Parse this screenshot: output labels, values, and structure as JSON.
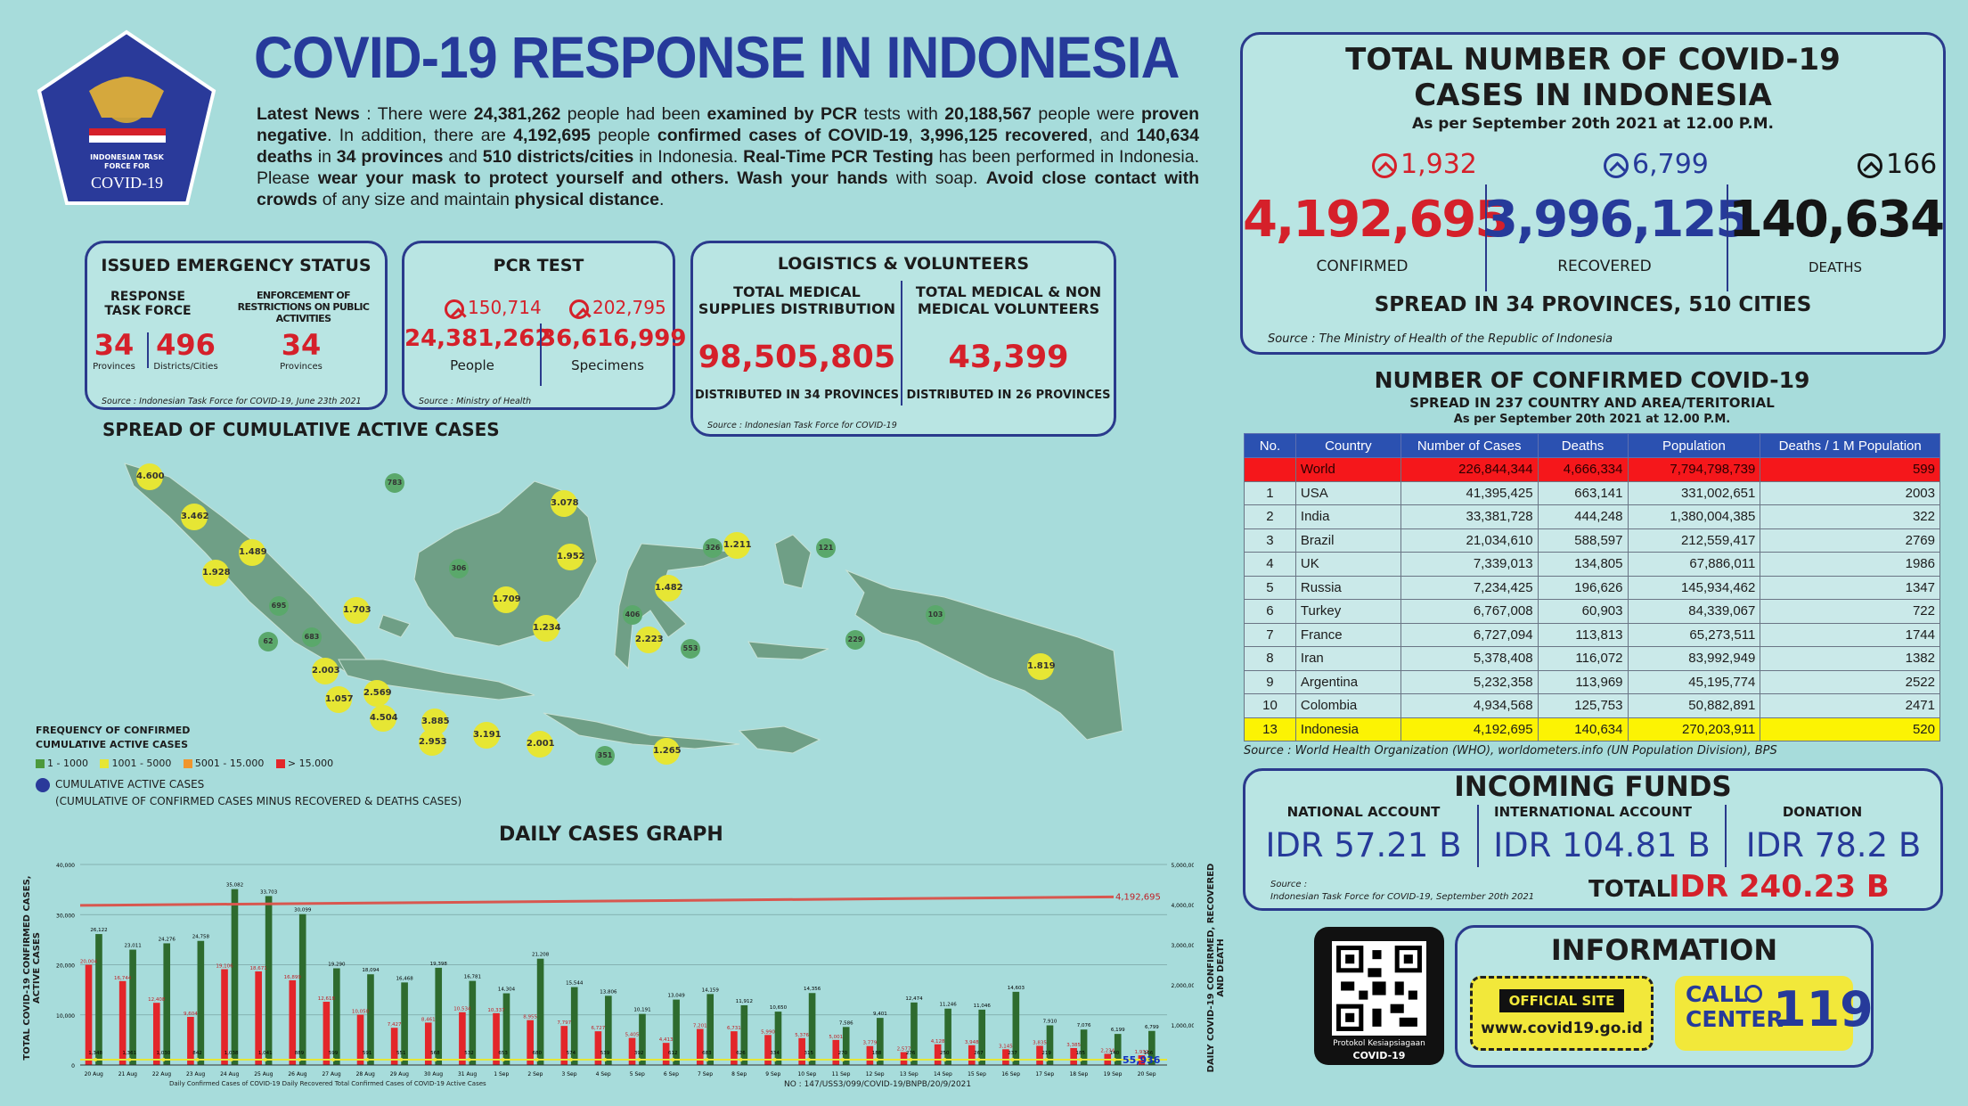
{
  "title": "COVID-19 RESPONSE IN INDONESIA",
  "logo": {
    "line1": "INDONESIAN TASK",
    "line2": "FORCE FOR",
    "line3": "COVID-19"
  },
  "news": {
    "lead": "Latest News",
    "pre": " : There were ",
    "tests": "24,381,262",
    "t1": " people had been ",
    "examined": "examined by PCR",
    "t2": " tests with ",
    "neg": "20,188,567",
    "t3": " people were ",
    "proven": "proven negative",
    "t4": ". In addition, there are ",
    "conf": "4,192,695",
    "t5": " people ",
    "confirmed": "confirmed cases of COVID-19",
    "t6": ", ",
    "rec": "3,996,125 recovered",
    "t7": ", and ",
    "deaths": "140,634 deaths",
    "t8": " in ",
    "prov": "34 provinces",
    "t9": " and ",
    "dist": "510 districts/cities",
    "t10": " in Indonesia. ",
    "rt": "Real-Time PCR Testing",
    "t11": " has been performed in Indonesia. Please ",
    "mask": "wear your mask to protect yourself and others. Wash your hands",
    "t12": " with soap. ",
    "avoid": "Avoid close contact with crowds",
    "t13": " of any size and maintain ",
    "dist2": "physical distance",
    "t14": "."
  },
  "emergency": {
    "title": "ISSUED EMERGENCY STATUS",
    "col1": "RESPONSE TASK FORCE",
    "col2": "ENFORCEMENT OF RESTRICTIONS ON PUBLIC ACTIVITIES",
    "v1": "34",
    "l1": "Provinces",
    "v2": "496",
    "l2": "Districts/Cities",
    "v3": "34",
    "l3": "Provinces",
    "source": "Source : Indonesian Task Force for COVID-19, June 23th 2021"
  },
  "pcr": {
    "title": "PCR TEST",
    "inc1": "150,714",
    "inc2": "202,795",
    "v1": "24,381,262",
    "l1": "People",
    "v2": "36,616,999",
    "l2": "Specimens",
    "source": "Source : Ministry of Health"
  },
  "logistics": {
    "title": "LOGISTICS & VOLUNTEERS",
    "c1": "TOTAL MEDICAL SUPPLIES DISTRIBUTION",
    "v1": "98,505,805",
    "d1": "DISTRIBUTED IN 34 PROVINCES",
    "c2": "TOTAL MEDICAL & NON MEDICAL VOLUNTEERS",
    "v2": "43,399",
    "d2": "DISTRIBUTED IN 26 PROVINCES",
    "source": "Source : Indonesian Task Force for COVID-19"
  },
  "total": {
    "title1": "TOTAL NUMBER OF COVID-19",
    "title2": "CASES IN INDONESIA",
    "asof": "As per September 20th 2021 at 12.00 P.M.",
    "inc_conf": "1,932",
    "inc_rec": "6,799",
    "inc_death": "166",
    "conf": "4,192,695",
    "rec": "3,996,125",
    "death": "140,634",
    "l_conf": "CONFIRMED",
    "l_rec": "RECOVERED",
    "l_death": "DEATHS",
    "spread": "SPREAD IN 34 PROVINCES, 510 CITIES",
    "source": "Source : The Ministry of Health of the Republic of Indonesia"
  },
  "world": {
    "title": "NUMBER OF CONFIRMED COVID-19",
    "sub": "SPREAD IN 237 COUNTRY AND AREA/TERITORIAL",
    "asof": "As per September 20th 2021 at 12.00 P.M.",
    "headers": [
      "No.",
      "Country",
      "Number of Cases",
      "Deaths",
      "Population",
      "Deaths / 1 M Population"
    ],
    "rows": [
      [
        "",
        "World",
        "226,844,344",
        "4,666,334",
        "7,794,798,739",
        "599"
      ],
      [
        "1",
        "USA",
        "41,395,425",
        "663,141",
        "331,002,651",
        "2003"
      ],
      [
        "2",
        "India",
        "33,381,728",
        "444,248",
        "1,380,004,385",
        "322"
      ],
      [
        "3",
        "Brazil",
        "21,034,610",
        "588,597",
        "212,559,417",
        "2769"
      ],
      [
        "4",
        "UK",
        "7,339,013",
        "134,805",
        "67,886,011",
        "1986"
      ],
      [
        "5",
        "Russia",
        "7,234,425",
        "196,626",
        "145,934,462",
        "1347"
      ],
      [
        "6",
        "Turkey",
        "6,767,008",
        "60,903",
        "84,339,067",
        "722"
      ],
      [
        "7",
        "France",
        "6,727,094",
        "113,813",
        "65,273,511",
        "1744"
      ],
      [
        "8",
        "Iran",
        "5,378,408",
        "116,072",
        "83,992,949",
        "1382"
      ],
      [
        "9",
        "Argentina",
        "5,232,358",
        "113,969",
        "45,195,774",
        "2522"
      ],
      [
        "10",
        "Colombia",
        "4,934,568",
        "125,753",
        "50,882,891",
        "2471"
      ],
      [
        "13",
        "Indonesia",
        "4,192,695",
        "140,634",
        "270,203,911",
        "520"
      ]
    ],
    "source": "Source : World Health Organization (WHO), worldometers.info (UN Population Division), BPS"
  },
  "funds": {
    "title": "INCOMING FUNDS",
    "l1": "NATIONAL ACCOUNT",
    "v1": "IDR 57.21 B",
    "l2": "INTERNATIONAL ACCOUNT",
    "v2": "IDR 104.81 B",
    "l3": "DONATION",
    "v3": "IDR 78.2 B",
    "total_l": "TOTAL",
    "total_v": "IDR 240.23 B",
    "source1": "Source :",
    "source2": "Indonesian Task Force for COVID-19, September 20th 2021"
  },
  "info": {
    "title": "INFORMATION",
    "site_label": "OFFICIAL SITE",
    "site": "www.covid19.go.id",
    "call1": "CALL",
    "call2": "CENTER",
    "call_num": "119",
    "qr_caption1": "Protokol Kesiapsiagaan",
    "qr_caption2": "COVID-19"
  },
  "map": {
    "title": "SPREAD OF CUMULATIVE ACTIVE CASES",
    "legend_title1": "FREQUENCY OF CONFIRMED",
    "legend_title2": "CUMULATIVE ACTIVE CASES",
    "legend": [
      "1 - 1000",
      "1001 - 5000",
      "5001 - 15.000",
      "> 15.000"
    ],
    "legend_colors": [
      "#4c9a3c",
      "#e6e634",
      "#f0962d",
      "#e3262a"
    ],
    "cum_title": "CUMULATIVE ACTIVE CASES",
    "cum_sub": "(CUMULATIVE OF CONFIRMED CASES MINUS RECOVERED & DEATHS CASES)",
    "points": [
      [
        "4.600",
        "y"
      ],
      [
        "783",
        "g"
      ],
      [
        "3.462",
        "y"
      ],
      [
        "3.078",
        "y"
      ],
      [
        "1.489",
        "y"
      ],
      [
        "1.928",
        "y"
      ],
      [
        "306",
        "g"
      ],
      [
        "1.952",
        "y"
      ],
      [
        "326",
        "g"
      ],
      [
        "1.211",
        "y"
      ],
      [
        "121",
        "g"
      ],
      [
        "695",
        "g"
      ],
      [
        "1.709",
        "y"
      ],
      [
        "1.482",
        "y"
      ],
      [
        "1.703",
        "y"
      ],
      [
        "62",
        "g"
      ],
      [
        "683",
        "g"
      ],
      [
        "406",
        "g"
      ],
      [
        "103",
        "g"
      ],
      [
        "1.234",
        "y"
      ],
      [
        "2.223",
        "y"
      ],
      [
        "553",
        "g"
      ],
      [
        "229",
        "g"
      ],
      [
        "2.003",
        "y"
      ],
      [
        "1.057",
        "y"
      ],
      [
        "2.569",
        "y"
      ],
      [
        "4.504",
        "y"
      ],
      [
        "1.819",
        "y"
      ],
      [
        "3.885",
        "y"
      ],
      [
        "2.953",
        "y"
      ],
      [
        "3.191",
        "y"
      ],
      [
        "2.001",
        "y"
      ],
      [
        "351",
        "g"
      ],
      [
        "1.265",
        "y"
      ]
    ]
  },
  "chart_data": {
    "type": "bar",
    "title": "DAILY CASES GRAPH",
    "ylabel": "TOTAL COVID-19 CONFIRMED CASES, ACTIVE CASES",
    "y2label": "DAILY COVID-19 CONFIRMED, RECOVERED AND DEATH",
    "ylim": [
      0,
      40000
    ],
    "y2lim": [
      0,
      5000000
    ],
    "yticks": [
      "40,000",
      "30,000",
      "20,000",
      "10,000",
      "0"
    ],
    "y2ticks": [
      "5,000,000",
      "4,000,000",
      "3,000,000",
      "2,000,000",
      "1,000,000",
      "0"
    ],
    "categories": [
      "20 Aug",
      "21 Aug",
      "22 Aug",
      "23 Aug",
      "24 Aug",
      "25 Aug",
      "26 Aug",
      "27 Aug",
      "28 Aug",
      "29 Aug",
      "30 Aug",
      "31 Aug",
      "1 Sep",
      "2 Sep",
      "3 Sep",
      "4 Sep",
      "5 Sep",
      "6 Sep",
      "7 Sep",
      "8 Sep",
      "9 Sep",
      "10 Sep",
      "11 Sep",
      "12 Sep",
      "13 Sep",
      "14 Sep",
      "15 Sep",
      "16 Sep",
      "17 Sep",
      "18 Sep",
      "19 Sep",
      "20 Sep"
    ],
    "series": [
      {
        "name": "Daily Confirmed Cases of COVID-19",
        "color": "#e3262a",
        "values": [
          20004,
          16744,
          12408,
          9604,
          19106,
          18671,
          16899,
          12618,
          10050,
          7427,
          8461,
          10534,
          10337,
          8955,
          7797,
          6727,
          5405,
          4413,
          7201,
          6731,
          5990,
          5376,
          5001,
          3779,
          2577,
          4128,
          3948,
          3145,
          3835,
          3385,
          2234,
          1932
        ],
        "labels": [
          "20,004",
          "16,744",
          "12,408",
          "9,604",
          "19,106",
          "18,671",
          "16,899",
          "12,618",
          "10,050",
          "7,427",
          "8,461",
          "10,534",
          "10,337",
          "8,955",
          "7,797",
          "6,727",
          "5,405",
          "4,413",
          "7,201",
          "6,731",
          "5,990",
          "5,376",
          "5,001",
          "3,779",
          "2,577",
          "4,128",
          "3,948",
          "3,145",
          "3,835",
          "3,385",
          "2,234",
          "1,932"
        ]
      },
      {
        "name": "Daily Recovered",
        "color": "#2e6b2e",
        "values": [
          26122,
          23011,
          24276,
          24758,
          35082,
          33703,
          30099,
          19290,
          18094,
          16468,
          19398,
          16781,
          14304,
          21208,
          15544,
          13806,
          10191,
          13049,
          14159,
          11912,
          10650,
          14356,
          7586,
          9401,
          12474,
          11246,
          11046,
          14603,
          7910,
          7076,
          6199,
          6799
        ],
        "labels": [
          "26,122",
          "23,011",
          "24,276",
          "24,758",
          "35,082",
          "33,703",
          "30,099",
          "19,290",
          "18,094",
          "16,468",
          "19,398",
          "16,781",
          "14,304",
          "21,208",
          "15,544",
          "13,806",
          "10,191",
          "13,049",
          "14,159",
          "11,912",
          "10,650",
          "14,356",
          "7,586",
          "9,401",
          "12,474",
          "11,246",
          "11,046",
          "14,603",
          "7,910",
          "7,076",
          "6,199",
          "6,799"
        ]
      },
      {
        "name": "Daily Deaths",
        "color": "#1a1a1a",
        "values": [
          1348,
          1361,
          1030,
          842,
          1038,
          1041,
          889,
          599,
          591,
          551,
          568,
          532,
          653,
          680,
          574,
          539,
          392,
          612,
          683,
          626,
          334,
          315,
          270,
          188,
          276,
          250,
          267,
          237,
          219,
          185,
          140,
          166
        ],
        "labels": [
          "1,348",
          "1,361",
          "1,030",
          "842",
          "1,038",
          "1,041",
          "889",
          "599",
          "591",
          "551",
          "568",
          "532",
          "653",
          "680",
          "574",
          "539",
          "392",
          "612",
          "683",
          "626",
          "334",
          "315",
          "270",
          "188",
          "276",
          "250",
          "267",
          "237",
          "219",
          "185",
          "140",
          "166"
        ]
      }
    ],
    "line": {
      "name": "Total Confirmed Cases",
      "color": "#d8574f",
      "end_label": "4,192,695",
      "start": 3979456,
      "end": 4192695
    },
    "active_end_label": "55,936",
    "legend": "Daily Confirmed Cases of COVID-19  Daily Recovered  Total Confirmed Cases of COVID-19  Active Cases",
    "footnote": "NO : 147/USS3/099/COVID-19/BNPB/20/9/2021"
  }
}
